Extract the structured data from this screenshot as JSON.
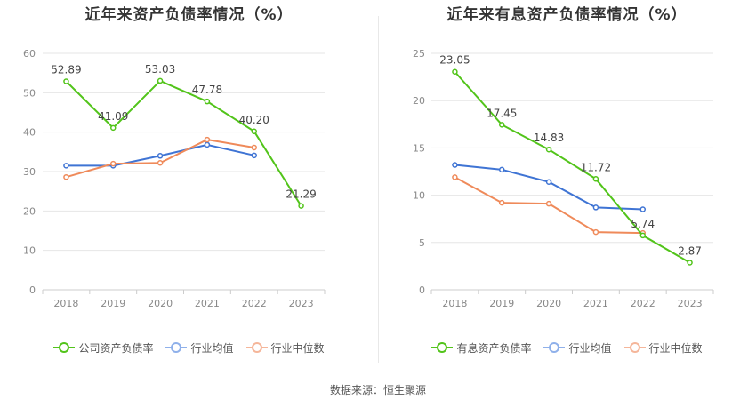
{
  "source_text": "数据来源：恒生聚源",
  "chart_data": [
    {
      "type": "line",
      "title": "近年来资产负债率情况（%）",
      "x": [
        "2018",
        "2019",
        "2020",
        "2021",
        "2022",
        "2023"
      ],
      "ylim": [
        0,
        60
      ],
      "yticks": [
        "0",
        "10",
        "20",
        "30",
        "40",
        "50",
        "60"
      ],
      "grid": true,
      "legend_position": "bottom",
      "series": [
        {
          "name": "公司资产负债率",
          "color": "#52c41a",
          "values": [
            52.89,
            41.09,
            53.03,
            47.78,
            40.2,
            21.29
          ],
          "labels": [
            "52.89",
            "41.09",
            "53.03",
            "47.78",
            "40.20",
            "21.29"
          ]
        },
        {
          "name": "行业均值",
          "color": "#3f74d4",
          "values": [
            31.5,
            31.5,
            34.0,
            36.8,
            34.1,
            null
          ],
          "labels": []
        },
        {
          "name": "行业中位数",
          "color": "#ef8a5a",
          "values": [
            28.6,
            32.0,
            32.2,
            38.1,
            36.1,
            null
          ],
          "labels": []
        }
      ]
    },
    {
      "type": "line",
      "title": "近年来有息资产负债率情况（%）",
      "x": [
        "2018",
        "2019",
        "2020",
        "2021",
        "2022",
        "2023"
      ],
      "ylim": [
        0,
        25
      ],
      "yticks": [
        "0",
        "5",
        "10",
        "15",
        "20",
        "25"
      ],
      "grid": true,
      "legend_position": "bottom",
      "series": [
        {
          "name": "有息资产负债率",
          "color": "#52c41a",
          "values": [
            23.05,
            17.45,
            14.83,
            11.72,
            5.74,
            2.87
          ],
          "labels": [
            "23.05",
            "17.45",
            "14.83",
            "11.72",
            "5.74",
            "2.87"
          ]
        },
        {
          "name": "行业均值",
          "color": "#3f74d4",
          "values": [
            13.2,
            12.7,
            11.4,
            8.7,
            8.5,
            null
          ],
          "labels": []
        },
        {
          "name": "行业中位数",
          "color": "#ef8a5a",
          "values": [
            11.9,
            9.2,
            9.1,
            6.1,
            6.0,
            null
          ],
          "labels": []
        }
      ]
    }
  ]
}
